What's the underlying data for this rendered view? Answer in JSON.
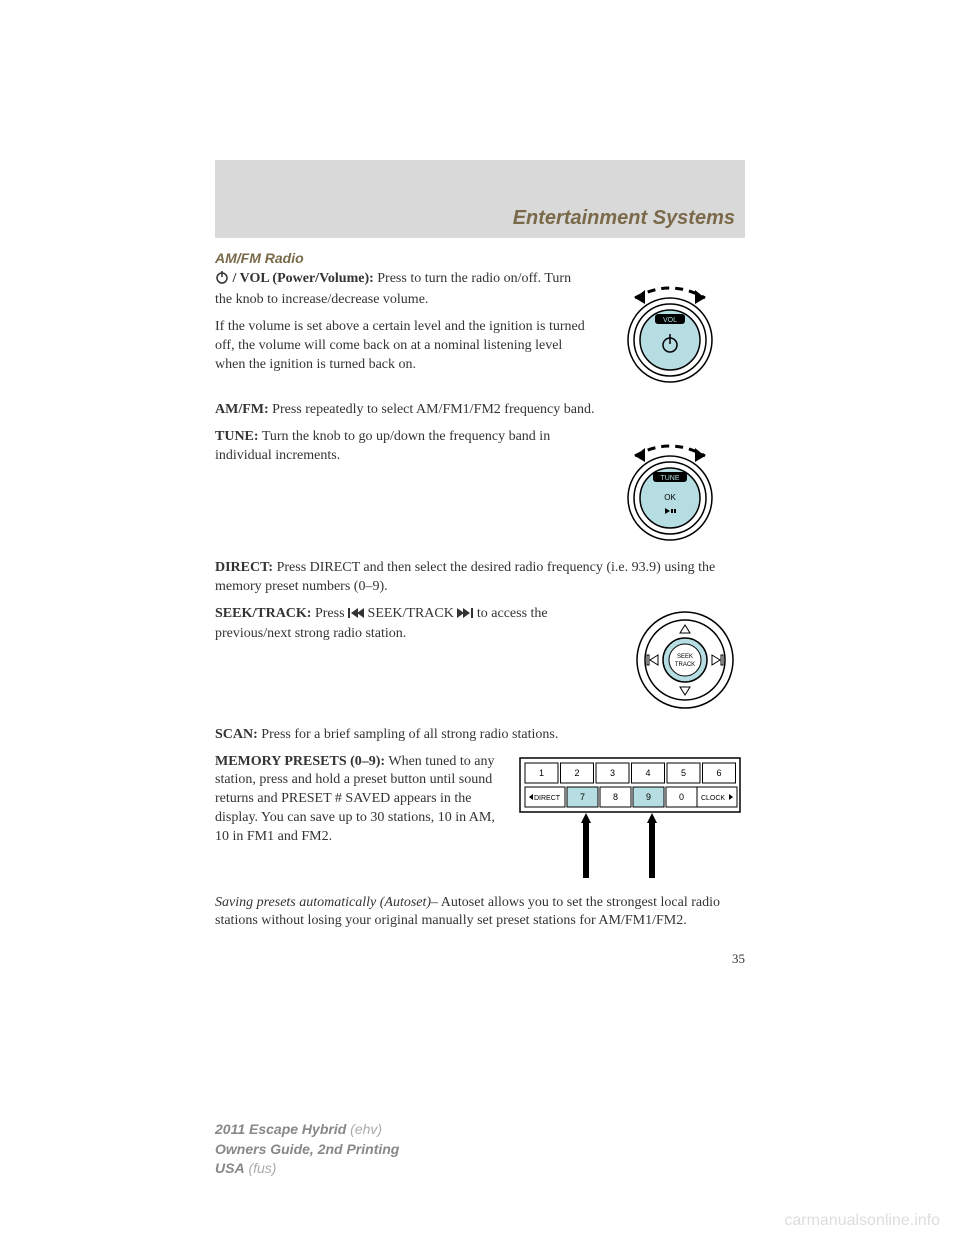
{
  "header": {
    "title": "Entertainment Systems"
  },
  "section": {
    "title": "AM/FM Radio"
  },
  "para": {
    "power_label": "/ VOL (Power/Volume):",
    "power_text": "Press to turn the radio on/off. Turn the knob to increase/decrease volume.",
    "power_note": "If the volume is set above a certain level and the ignition is turned off, the volume will come back on at a nominal listening level when the ignition is turned back on.",
    "amfm_label": "AM/FM:",
    "amfm_text": "Press repeatedly to select AM/FM1/FM2 frequency band.",
    "tune_label": "TUNE:",
    "tune_text": "Turn the knob to go up/down the frequency band in individual increments.",
    "direct_label": "DIRECT:",
    "direct_text": "Press DIRECT and then select the desired radio frequency (i.e. 93.9) using the memory preset numbers (0–9).",
    "seek_label": "SEEK/TRACK:",
    "seek_text1": "Press",
    "seek_text2": "SEEK/TRACK",
    "seek_text3": "to access the previous/next strong radio station.",
    "scan_label": "SCAN:",
    "scan_text": "Press for a brief sampling of all strong radio stations.",
    "preset_label": "MEMORY PRESETS (0–9):",
    "preset_text": "When tuned to any station, press and hold a preset button until sound returns and PRESET # SAVED appears in the display. You can save up to 30 stations, 10 in AM, 10 in FM1 and FM2.",
    "autoset_label": "Saving presets automatically (Autoset)–",
    "autoset_text": "Autoset allows you to set the strongest local radio stations without losing your original manually set preset stations for AM/FM1/FM2."
  },
  "knob": {
    "vol_label": "VOL",
    "tune_label": "TUNE",
    "ok_label": "OK",
    "seek_label1": "SEEK",
    "seek_label2": "TRACK",
    "fill": "#b5dde2",
    "stroke": "#000000"
  },
  "presets": {
    "row1": [
      "1",
      "2",
      "3",
      "4",
      "5",
      "6"
    ],
    "row2_left": "DIRECT",
    "row2_mid": [
      "7",
      "8",
      "9",
      "0"
    ],
    "row2_right": "CLOCK",
    "highlight_fill": "#b5dde2",
    "plain_fill": "#ffffff",
    "stroke": "#000000"
  },
  "page_number": "35",
  "footer": {
    "line1_bold": "2011 Escape Hybrid",
    "line1_light": "(ehv)",
    "line2": "Owners Guide, 2nd Printing",
    "line3_bold": "USA",
    "line3_light": "(fus)"
  },
  "watermark": "carmanualsonline.info"
}
